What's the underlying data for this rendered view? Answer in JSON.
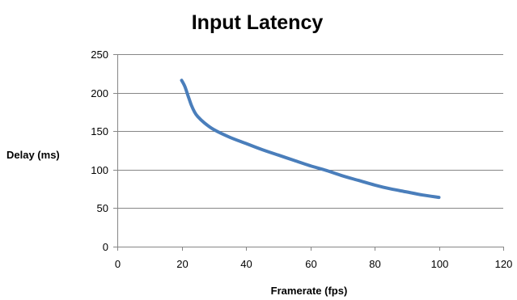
{
  "chart_data": {
    "type": "line",
    "title": "Input Latency",
    "xlabel": "Framerate (fps)",
    "ylabel": "Delay (ms)",
    "xlim": [
      0,
      120
    ],
    "ylim": [
      0,
      250
    ],
    "x_ticks": [
      0,
      20,
      40,
      60,
      80,
      100,
      120
    ],
    "y_ticks": [
      0,
      50,
      100,
      150,
      200,
      250
    ],
    "grid": "horizontal",
    "legend": "none",
    "series": [
      {
        "color": "#4a7ebb",
        "points": [
          {
            "x": 20,
            "y": 216
          },
          {
            "x": 21,
            "y": 208
          },
          {
            "x": 22,
            "y": 196
          },
          {
            "x": 23,
            "y": 184
          },
          {
            "x": 24,
            "y": 175
          },
          {
            "x": 25,
            "y": 169
          },
          {
            "x": 27,
            "y": 161
          },
          {
            "x": 30,
            "y": 152
          },
          {
            "x": 35,
            "y": 142
          },
          {
            "x": 40,
            "y": 134
          },
          {
            "x": 45,
            "y": 126
          },
          {
            "x": 50,
            "y": 119
          },
          {
            "x": 55,
            "y": 112
          },
          {
            "x": 60,
            "y": 105
          },
          {
            "x": 65,
            "y": 99
          },
          {
            "x": 70,
            "y": 92
          },
          {
            "x": 75,
            "y": 86
          },
          {
            "x": 80,
            "y": 80
          },
          {
            "x": 85,
            "y": 75
          },
          {
            "x": 90,
            "y": 71
          },
          {
            "x": 95,
            "y": 67
          },
          {
            "x": 100,
            "y": 64
          }
        ]
      }
    ]
  }
}
